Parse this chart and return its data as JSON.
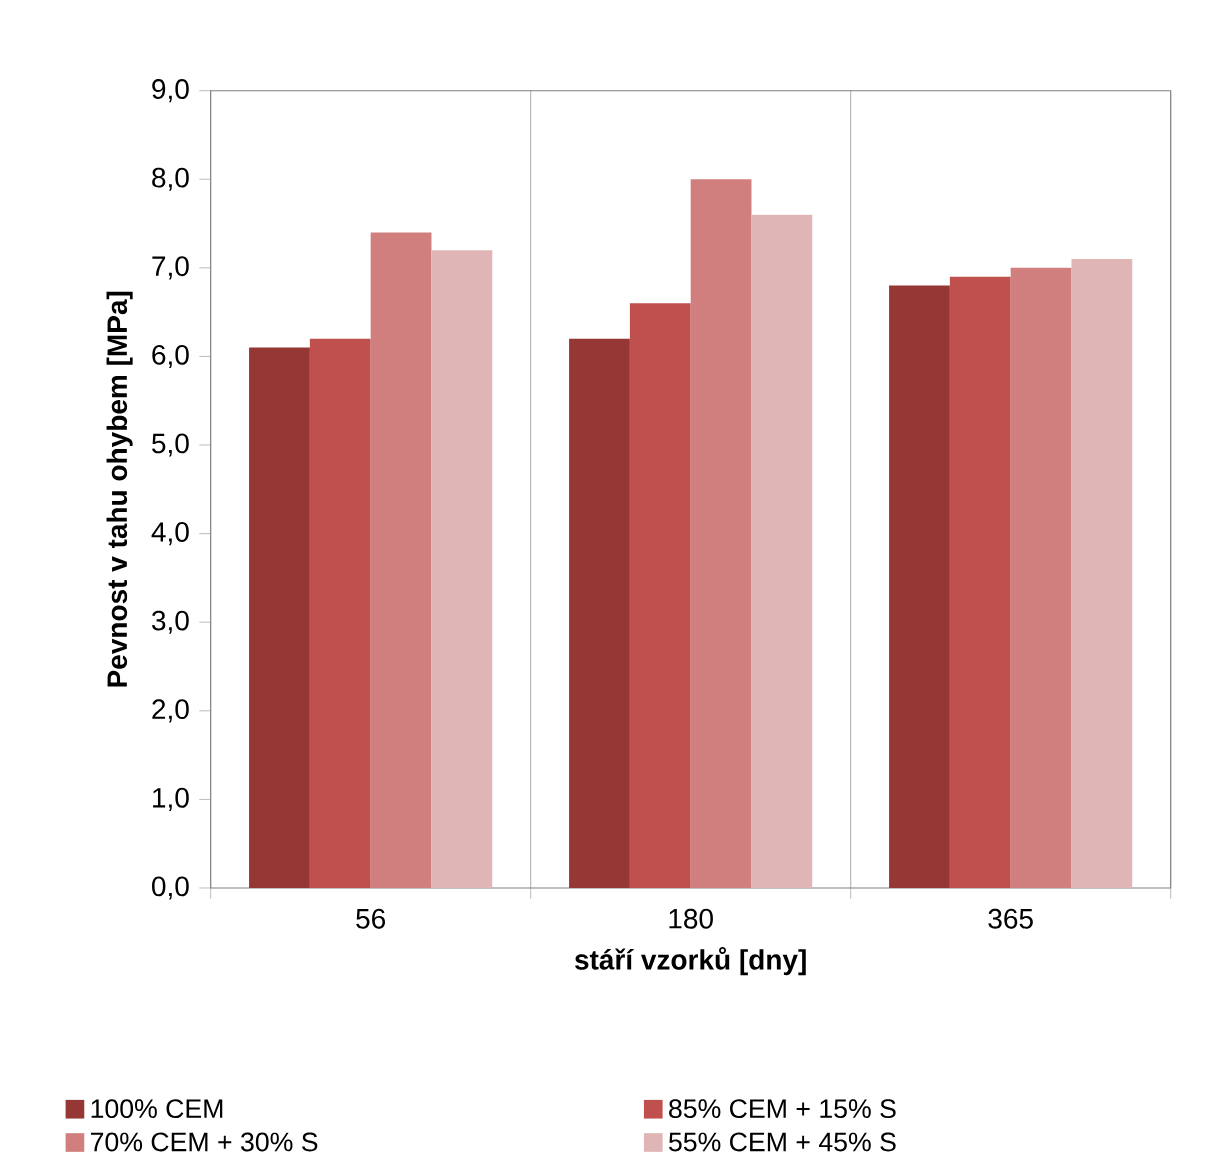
{
  "chart_data": {
    "type": "bar",
    "xlabel": "stáří vzorků [dny]",
    "ylabel": "Pevnost v tahu ohybem [MPa]",
    "categories": [
      "56",
      "180",
      "365"
    ],
    "series": [
      {
        "name": "100% CEM",
        "color": "#953735",
        "values": [
          6.1,
          6.2,
          6.8
        ]
      },
      {
        "name": "85% CEM + 15% S",
        "color": "#c0504d",
        "values": [
          6.2,
          6.6,
          6.9
        ]
      },
      {
        "name": "70% CEM + 30% S",
        "color": "#d07f7e",
        "values": [
          7.4,
          8.0,
          7.0
        ]
      },
      {
        "name": "55% CEM + 45% S",
        "color": "#e0b5b5",
        "values": [
          7.2,
          7.6,
          7.1
        ]
      }
    ],
    "ylim": [
      0,
      9
    ],
    "yticks": [
      {
        "value": 0,
        "label": "0,0"
      },
      {
        "value": 1,
        "label": "1,0"
      },
      {
        "value": 2,
        "label": "2,0"
      },
      {
        "value": 3,
        "label": "3,0"
      },
      {
        "value": 4,
        "label": "4,0"
      },
      {
        "value": 5,
        "label": "5,0"
      },
      {
        "value": 6,
        "label": "6,0"
      },
      {
        "value": 7,
        "label": "7,0"
      },
      {
        "value": 8,
        "label": "8,0"
      },
      {
        "value": 9,
        "label": "9,0"
      }
    ],
    "grid": "x",
    "legend": "bottom"
  }
}
